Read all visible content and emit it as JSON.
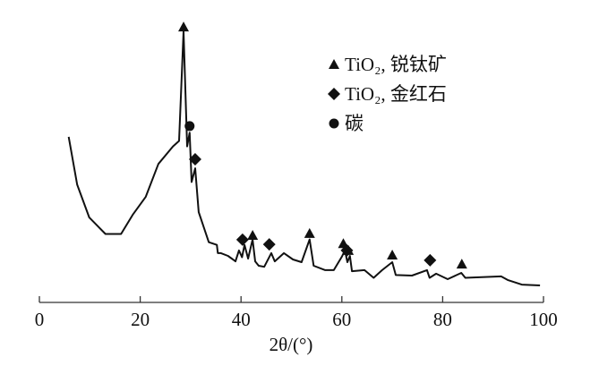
{
  "chart_data": {
    "type": "line",
    "title": "",
    "xlabel": "2θ/(°)",
    "ylabel": "",
    "xlim": [
      0,
      100
    ],
    "ylim": [
      0,
      100
    ],
    "x_ticks": [
      0,
      20,
      40,
      60,
      80,
      100
    ],
    "y_axis_shown": false,
    "grid": false,
    "legend_placement": "top-right",
    "line_color": "#111111",
    "series": [
      {
        "x": [
          5.8,
          7.5,
          9.9,
          13.1,
          16.2,
          18.5,
          21.1,
          23.6,
          26.5,
          27.7,
          28.6,
          29.3,
          29.8,
          30.2,
          30.9,
          31.6,
          33.6,
          35.2,
          35.4,
          36.0,
          37.4,
          38.4,
          38.9,
          39.6,
          40.2,
          40.7,
          41.4,
          42.3,
          42.8,
          43.5,
          44.6,
          46.0,
          46.7,
          48.5,
          50.3,
          52.0,
          53.6,
          54.4,
          56.7,
          58.4,
          60.0,
          60.6,
          61.1,
          61.6,
          62.0,
          64.5,
          66.3,
          68.0,
          70.0,
          70.7,
          73.9,
          76.9,
          77.4,
          78.7,
          81.0,
          83.7,
          84.5,
          91.6,
          92.9,
          95.7,
          99.3
        ],
        "y": [
          60.5,
          43,
          31,
          25,
          25,
          32,
          38.6,
          50.6,
          57,
          59,
          99,
          57,
          62,
          44,
          49,
          33,
          22,
          21,
          18,
          18,
          17,
          15.7,
          15,
          19,
          16.5,
          21,
          16,
          23,
          15,
          13.4,
          13,
          18,
          15,
          18,
          15.7,
          14.7,
          23,
          13.4,
          11.8,
          11.8,
          16.7,
          19,
          14.7,
          17,
          11.4,
          11.8,
          9,
          11.8,
          14.7,
          10,
          9.8,
          11.8,
          9,
          10.5,
          8.5,
          10.8,
          9,
          9.5,
          8.2,
          6.5,
          6.2
        ]
      }
    ],
    "legend": [
      {
        "marker": "triangle",
        "label": "TiO₂, 锐钛矿"
      },
      {
        "marker": "diamond",
        "label": "TiO₂, 金红石"
      },
      {
        "marker": "circle",
        "label": "碳"
      }
    ],
    "markers": {
      "triangle": [
        [
          28.6,
          100.6
        ],
        [
          42.3,
          24.5
        ],
        [
          53.6,
          25.2
        ],
        [
          60.3,
          21.5
        ],
        [
          61.3,
          19
        ],
        [
          70.0,
          17.3
        ],
        [
          83.8,
          14
        ]
      ],
      "diamond": [
        [
          30.9,
          52.3
        ],
        [
          40.3,
          22.9
        ],
        [
          45.6,
          21.2
        ],
        [
          61.0,
          19
        ],
        [
          77.5,
          15.4
        ]
      ],
      "circle": [
        [
          29.8,
          64.4
        ]
      ]
    }
  }
}
